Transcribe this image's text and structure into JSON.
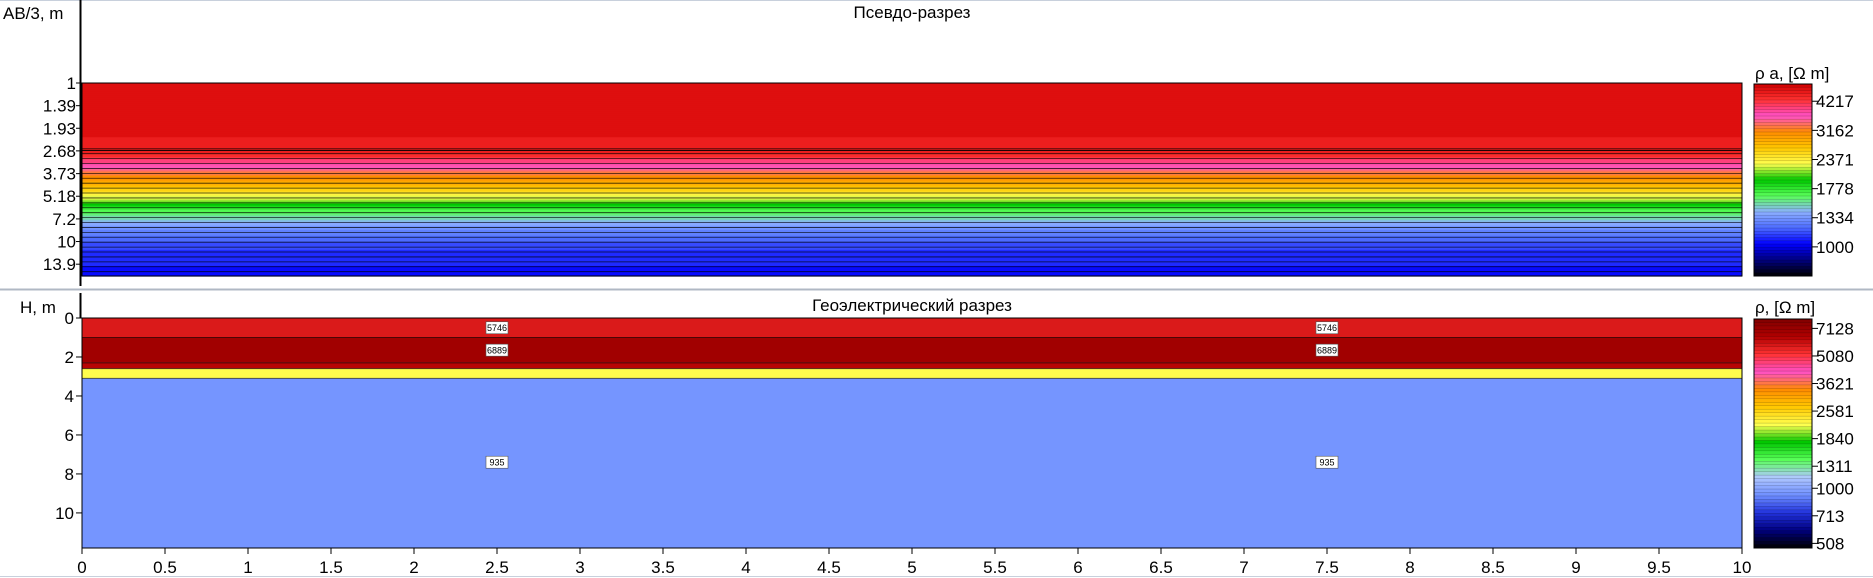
{
  "colors": {
    "pseudo_scale": [
      "#000000",
      "#000080",
      "#0000ff",
      "#4d6bff",
      "#8db0ff",
      "#5aff5a",
      "#00c800",
      "#ffff50",
      "#ffc800",
      "#ff8c00",
      "#ff50c8",
      "#ff3232",
      "#d00000"
    ],
    "geo_scale": [
      "#000000",
      "#000080",
      "#2233dd",
      "#7090ff",
      "#b0c8ff",
      "#5aff5a",
      "#00c800",
      "#ffff50",
      "#ffc800",
      "#ff8c00",
      "#ff50c8",
      "#ff3232",
      "#b00000",
      "#800000"
    ]
  },
  "chart_data": [
    {
      "type": "heatmap",
      "title": "Псевдо-разрез",
      "ylabel": "AB/3, m",
      "y_scale": "log",
      "y_ticks": [
        "1",
        "1.39",
        "1.93",
        "2.68",
        "3.73",
        "5.18",
        "7.2",
        "10",
        "13.9"
      ],
      "y_tick_values": [
        1,
        1.39,
        1.93,
        2.68,
        3.73,
        5.18,
        7.2,
        10,
        13.9
      ],
      "ylim": [
        1,
        16.5
      ],
      "xlim": [
        0,
        10
      ],
      "colorbar": {
        "label": "ρ a,  [Ω m]",
        "ticks": [
          "4217",
          "3162",
          "2371",
          "1778",
          "1334",
          "1000"
        ],
        "tick_values": [
          4217,
          3162,
          2371,
          1778,
          1334,
          1000
        ],
        "range": [
          750,
          5000
        ]
      },
      "profile": {
        "ab3": [
          1,
          2.5,
          2.8,
          3.1,
          3.4,
          3.7,
          4.1,
          4.5,
          5.0,
          5.5,
          6.0,
          6.6,
          7.2,
          8.0,
          9.0,
          10,
          11.5,
          13.5,
          16.5
        ],
        "rho": [
          4700,
          4650,
          4400,
          4000,
          3600,
          3300,
          3000,
          2700,
          2400,
          2100,
          1850,
          1650,
          1500,
          1350,
          1250,
          1180,
          1120,
          1080,
          1040
        ]
      }
    },
    {
      "type": "heatmap",
      "title": "Геоэлектрический разрез",
      "ylabel": "H, m",
      "y_ticks": [
        "0",
        "2",
        "4",
        "6",
        "8",
        "10"
      ],
      "y_tick_values": [
        0,
        2,
        4,
        6,
        8,
        10
      ],
      "ylim": [
        0,
        11.8
      ],
      "x_ticks": [
        "0",
        "0.5",
        "1",
        "1.5",
        "2",
        "2.5",
        "3",
        "3.5",
        "4",
        "4.5",
        "5",
        "5.5",
        "6",
        "6.5",
        "7",
        "7.5",
        "8",
        "8.5",
        "9",
        "9.5",
        "10"
      ],
      "x_tick_values": [
        0,
        0.5,
        1,
        1.5,
        2,
        2.5,
        3,
        3.5,
        4,
        4.5,
        5,
        5.5,
        6,
        6.5,
        7,
        7.5,
        8,
        8.5,
        9,
        9.5,
        10
      ],
      "xlim": [
        0,
        10
      ],
      "colorbar": {
        "label": "ρ, [Ω m]",
        "ticks": [
          "7128",
          "5080",
          "3621",
          "2581",
          "1840",
          "1311",
          "1000",
          "713",
          "508"
        ],
        "tick_values": [
          7128,
          5080,
          3621,
          2581,
          1840,
          1311,
          1000,
          713,
          508
        ],
        "range": [
          480,
          8000
        ]
      },
      "layers": [
        {
          "top": 0,
          "bottom": 1.0,
          "rho": 5746,
          "label": "5746"
        },
        {
          "top": 1.0,
          "bottom": 2.3,
          "rho": 6889,
          "label": "6889"
        },
        {
          "top": 2.3,
          "bottom": 2.6,
          "rho": 6300
        },
        {
          "top": 2.6,
          "bottom": 3.1,
          "rho": 2200
        },
        {
          "top": 3.1,
          "bottom": 11.8,
          "rho": 935,
          "label": "935"
        }
      ],
      "label_x": [
        2.5,
        7.5
      ]
    }
  ]
}
